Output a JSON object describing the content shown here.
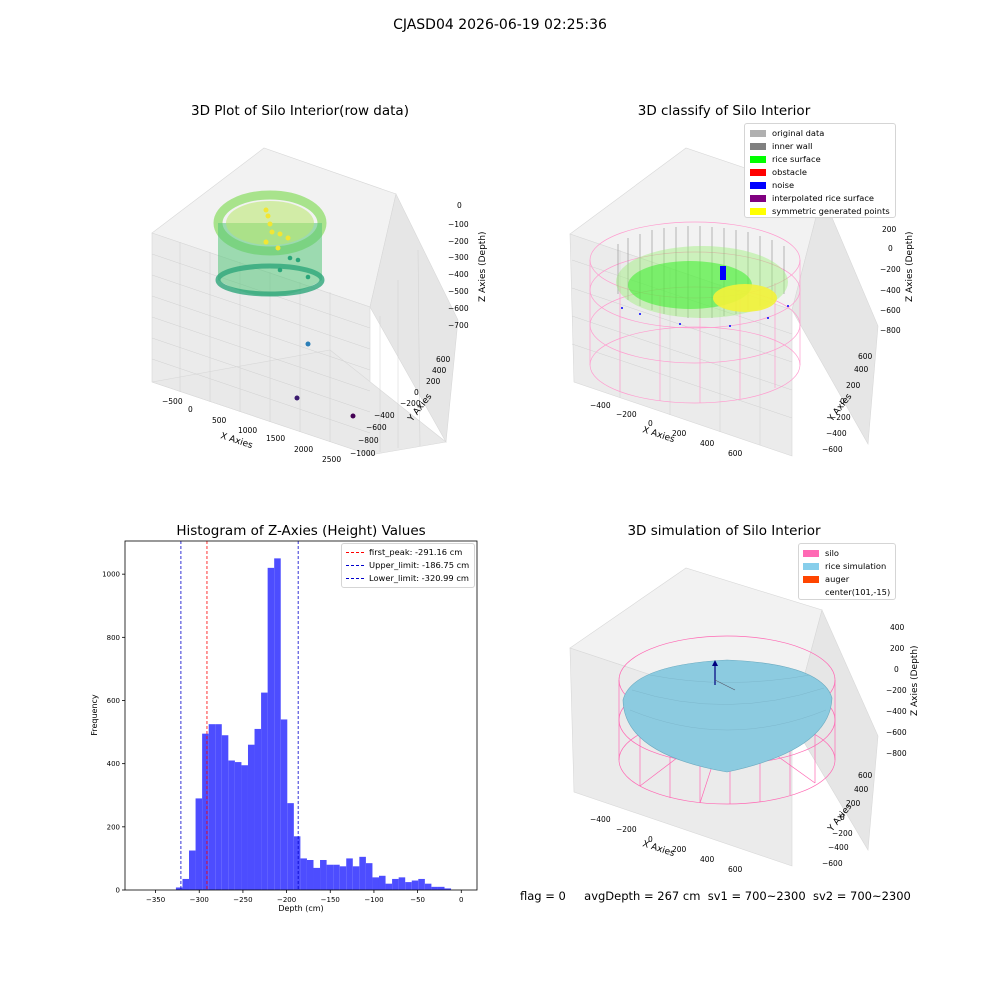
{
  "figure": {
    "suptitle": "CJASD04 2026-06-19 02:25:36"
  },
  "panels": {
    "raw": {
      "title": "3D Plot of Silo Interior(row data)",
      "xlabel": "X Axies",
      "ylabel": "Y Axies",
      "zlabel": "Z Axies (Depth)",
      "xticks": [
        "−500",
        "0",
        "500",
        "1000",
        "1500",
        "2000",
        "2500"
      ],
      "yticks": [
        "−1000",
        "−800",
        "−600",
        "−400",
        "−200",
        "0",
        "200",
        "400",
        "600"
      ],
      "zticks": [
        "0",
        "−100",
        "−200",
        "−300",
        "−400",
        "−500",
        "−600",
        "−700"
      ]
    },
    "classify": {
      "title": "3D classify of Silo Interior",
      "xlabel": "X Axies",
      "ylabel": "Y Axies",
      "zlabel": "Z Axies (Depth)",
      "xticks": [
        "−400",
        "−200",
        "0",
        "200",
        "400",
        "600"
      ],
      "yticks": [
        "−600",
        "−400",
        "−200",
        "0",
        "200",
        "400",
        "600"
      ],
      "zticks": [
        "200",
        "0",
        "−200",
        "−400",
        "−600",
        "−800"
      ],
      "zticks_partial": [
        "00"
      ],
      "legend": [
        {
          "label": "original data",
          "color": "#b0b0b0"
        },
        {
          "label": "inner wall",
          "color": "#808080"
        },
        {
          "label": "rice surface",
          "color": "#00ff00"
        },
        {
          "label": "obstacle",
          "color": "#ff0000"
        },
        {
          "label": "noise",
          "color": "#0000ff"
        },
        {
          "label": "interpolated rice surface",
          "color": "#800080"
        },
        {
          "label": "symmetric generated points",
          "color": "#ffff00"
        }
      ]
    },
    "sim": {
      "title": "3D simulation of Silo Interior",
      "xlabel": "X Axies",
      "ylabel": "Y Axies",
      "zlabel": "Z Axies (Depth)",
      "xticks": [
        "−400",
        "−200",
        "0",
        "200",
        "400",
        "600"
      ],
      "yticks": [
        "−600",
        "−400",
        "−200",
        "0",
        "200",
        "400",
        "600"
      ],
      "zticks": [
        "400",
        "200",
        "0",
        "−200",
        "−400",
        "−600",
        "−800"
      ],
      "legend": [
        {
          "label": "silo",
          "color": "#ff69b4"
        },
        {
          "label": "rice simulation",
          "color": "#87ceeb"
        },
        {
          "label": "auger",
          "color": "#ff4500"
        },
        {
          "label": "center(101,-15)",
          "color": ""
        }
      ]
    }
  },
  "status": {
    "flag": "flag = 0",
    "avg": "avgDepth = 267 cm",
    "sv1": "sv1 = 700~2300",
    "sv2": "sv2 = 700~2300"
  },
  "colors": {
    "bars": "#4d4dff",
    "peak_line": "#ff0000",
    "limit_line": "#0000cc"
  },
  "chart_data": {
    "type": "bar",
    "title": "Histogram of Z-Axies (Height) Values",
    "xlabel": "Depth (cm)",
    "ylabel": "Frequency",
    "xlim": [
      -385,
      18
    ],
    "ylim": [
      0,
      1105
    ],
    "xticks": [
      -350,
      -300,
      -250,
      -200,
      -150,
      -100,
      -50,
      0
    ],
    "yticks": [
      0,
      200,
      400,
      600,
      800,
      1000
    ],
    "bin_width": 7.5,
    "bin_starts": [
      -326.7,
      -319.2,
      -311.7,
      -304.2,
      -296.7,
      -289.2,
      -281.7,
      -274.2,
      -266.7,
      -259.2,
      -251.7,
      -244.2,
      -236.7,
      -229.2,
      -221.7,
      -214.2,
      -206.7,
      -199.2,
      -191.7,
      -184.2,
      -176.7,
      -169.2,
      -161.7,
      -154.2,
      -146.7,
      -139.2,
      -131.7,
      -124.2,
      -116.7,
      -109.2,
      -101.7,
      -94.2,
      -86.7,
      -79.2,
      -71.7,
      -64.2,
      -56.7,
      -49.2,
      -41.7,
      -34.2,
      -26.7,
      -19.2
    ],
    "values": [
      8,
      35,
      125,
      290,
      495,
      525,
      525,
      490,
      410,
      405,
      395,
      460,
      510,
      625,
      1020,
      1050,
      540,
      275,
      170,
      100,
      95,
      70,
      95,
      80,
      80,
      75,
      100,
      75,
      105,
      85,
      40,
      45,
      20,
      35,
      40,
      25,
      30,
      35,
      20,
      10,
      10,
      5
    ],
    "lines": [
      {
        "label": "first_peak: -291.16 cm",
        "x": -291.16,
        "color": "#ff0000"
      },
      {
        "label": "Upper_limit: -186.75 cm",
        "x": -186.75,
        "color": "#0000cc"
      },
      {
        "label": "Lower_limit: -320.99 cm",
        "x": -320.99,
        "color": "#0000cc"
      }
    ],
    "legend_position": "top-right"
  }
}
